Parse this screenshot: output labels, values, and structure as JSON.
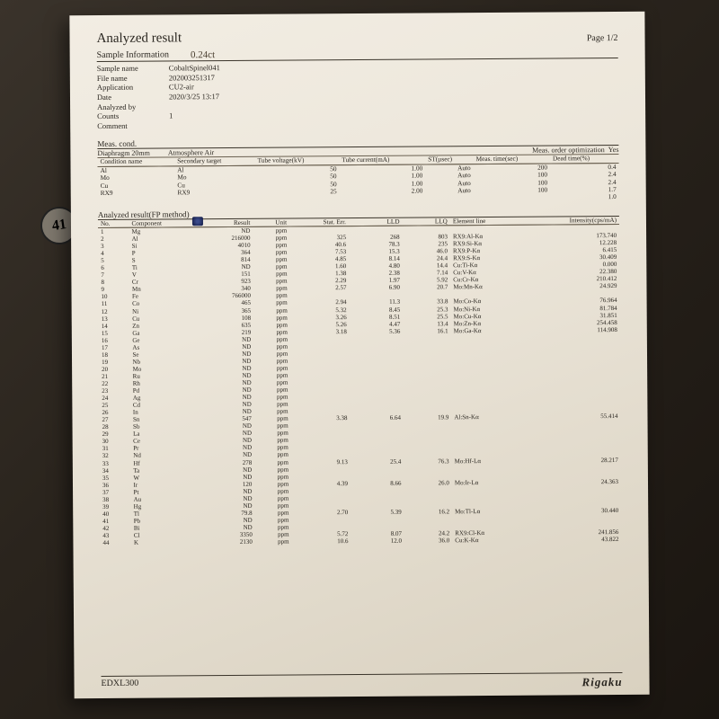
{
  "title": "Analyzed result",
  "page_label": "Page 1/2",
  "handwritten": "0.24ct",
  "stamp": "41",
  "sample_info_label": "Sample Information",
  "info": {
    "sample_name_l": "Sample name",
    "sample_name_v": "CobaltSpinel041",
    "file_name_l": "File name",
    "file_name_v": "202003251317",
    "application_l": "Application",
    "application_v": "CU2-air",
    "date_l": "Date",
    "date_v": "2020/3/25 13:17",
    "analyzed_by_l": "Analyzed by",
    "analyzed_by_v": "",
    "counts_l": "Counts",
    "counts_v": "1",
    "comment_l": "Comment",
    "comment_v": ""
  },
  "meas_cond_label": "Meas. cond.",
  "diaphragm_label": "Diaphragm  20mm",
  "atmosphere_label": "Atmosphere  Air",
  "meas_opt_label": "Meas. order optimization",
  "meas_opt_val": "Yes",
  "cond_headers": [
    "Condition name",
    "Secondary target",
    "Tube voltage(kV)",
    "Tube current(mA)",
    "ST(µsec)",
    "Meas. time(sec)",
    "Dead time(%)"
  ],
  "cond_rows": [
    [
      "Al",
      "Al",
      "50",
      "1.00",
      "Auto",
      "200",
      "0.4"
    ],
    [
      "Mo",
      "Mo",
      "50",
      "1.00",
      "Auto",
      "100",
      "2.4"
    ],
    [
      "Cu",
      "Cu",
      "50",
      "1.00",
      "Auto",
      "100",
      "2.4"
    ],
    [
      "RX9",
      "RX9",
      "25",
      "2.00",
      "Auto",
      "100",
      "1.7"
    ],
    [
      "",
      "",
      "",
      "",
      "",
      "",
      "1.0"
    ]
  ],
  "result_label": "Analyzed result(FP method)",
  "res_headers": [
    "No.",
    "Component",
    "Result",
    "Unit",
    "Stat. Err.",
    "LLD",
    "LLQ",
    "Element line",
    "Intensity(cps/mA)"
  ],
  "res_rows": [
    [
      "1",
      "Mg",
      "ND",
      "ppm",
      "",
      "",
      "",
      "",
      ""
    ],
    [
      "2",
      "Al",
      "216000",
      "ppm",
      "325",
      "268",
      "803",
      "RX9:Al-Kα",
      "173.740"
    ],
    [
      "3",
      "Si",
      "4010",
      "ppm",
      "40.6",
      "78.3",
      "235",
      "RX9:Si-Kα",
      "12.228"
    ],
    [
      "4",
      "P",
      "364",
      "ppm",
      "7.53",
      "15.3",
      "46.0",
      "RX9:P-Kα",
      "6.415"
    ],
    [
      "5",
      "S",
      "814",
      "ppm",
      "4.85",
      "8.14",
      "24.4",
      "RX9:S-Kα",
      "30.409"
    ],
    [
      "6",
      "Ti",
      "ND",
      "ppm",
      "1.60",
      "4.80",
      "14.4",
      "Cu:Ti-Kα",
      "0.000"
    ],
    [
      "7",
      "V",
      "151",
      "ppm",
      "1.38",
      "2.38",
      "7.14",
      "Cu:V-Kα",
      "22.380"
    ],
    [
      "8",
      "Cr",
      "923",
      "ppm",
      "2.29",
      "1.97",
      "5.92",
      "Cu:Cr-Kα",
      "210.412"
    ],
    [
      "9",
      "Mn",
      "340",
      "ppm",
      "2.57",
      "6.90",
      "20.7",
      "Mo:Mn-Kα",
      "24.929"
    ],
    [
      "10",
      "Fe",
      "766000",
      "ppm",
      "",
      "",
      "",
      "",
      ""
    ],
    [
      "11",
      "Co",
      "465",
      "ppm",
      "2.94",
      "11.3",
      "33.8",
      "Mo:Co-Kα",
      "76.964"
    ],
    [
      "12",
      "Ni",
      "365",
      "ppm",
      "5.32",
      "8.45",
      "25.3",
      "Mo:Ni-Kα",
      "81.784"
    ],
    [
      "13",
      "Cu",
      "108",
      "ppm",
      "3.26",
      "8.51",
      "25.5",
      "Mo:Cu-Kα",
      "31.851"
    ],
    [
      "14",
      "Zn",
      "635",
      "ppm",
      "5.26",
      "4.47",
      "13.4",
      "Mo:Zn-Kα",
      "254.458"
    ],
    [
      "15",
      "Ga",
      "219",
      "ppm",
      "3.18",
      "5.36",
      "16.1",
      "Mo:Ga-Kα",
      "114.908"
    ],
    [
      "16",
      "Ge",
      "ND",
      "ppm",
      "",
      "",
      "",
      "",
      ""
    ],
    [
      "17",
      "As",
      "ND",
      "ppm",
      "",
      "",
      "",
      "",
      ""
    ],
    [
      "18",
      "Se",
      "ND",
      "ppm",
      "",
      "",
      "",
      "",
      ""
    ],
    [
      "19",
      "Nb",
      "ND",
      "ppm",
      "",
      "",
      "",
      "",
      ""
    ],
    [
      "20",
      "Mo",
      "ND",
      "ppm",
      "",
      "",
      "",
      "",
      ""
    ],
    [
      "21",
      "Ru",
      "ND",
      "ppm",
      "",
      "",
      "",
      "",
      ""
    ],
    [
      "22",
      "Rh",
      "ND",
      "ppm",
      "",
      "",
      "",
      "",
      ""
    ],
    [
      "23",
      "Pd",
      "ND",
      "ppm",
      "",
      "",
      "",
      "",
      ""
    ],
    [
      "24",
      "Ag",
      "ND",
      "ppm",
      "",
      "",
      "",
      "",
      ""
    ],
    [
      "25",
      "Cd",
      "ND",
      "ppm",
      "",
      "",
      "",
      "",
      ""
    ],
    [
      "26",
      "In",
      "ND",
      "ppm",
      "",
      "",
      "",
      "",
      ""
    ],
    [
      "27",
      "Sn",
      "547",
      "ppm",
      "3.38",
      "6.64",
      "19.9",
      "Al:Sn-Kα",
      "55.414"
    ],
    [
      "28",
      "Sb",
      "ND",
      "ppm",
      "",
      "",
      "",
      "",
      ""
    ],
    [
      "29",
      "La",
      "ND",
      "ppm",
      "",
      "",
      "",
      "",
      ""
    ],
    [
      "30",
      "Ce",
      "ND",
      "ppm",
      "",
      "",
      "",
      "",
      ""
    ],
    [
      "31",
      "Pr",
      "ND",
      "ppm",
      "",
      "",
      "",
      "",
      ""
    ],
    [
      "32",
      "Nd",
      "ND",
      "ppm",
      "",
      "",
      "",
      "",
      ""
    ],
    [
      "33",
      "Hf",
      "278",
      "ppm",
      "9.13",
      "25.4",
      "76.3",
      "Mo:Hf-Lα",
      "28.217"
    ],
    [
      "34",
      "Ta",
      "ND",
      "ppm",
      "",
      "",
      "",
      "",
      ""
    ],
    [
      "35",
      "W",
      "ND",
      "ppm",
      "",
      "",
      "",
      "",
      ""
    ],
    [
      "36",
      "Ir",
      "120",
      "ppm",
      "4.39",
      "8.66",
      "26.0",
      "Mo:Ir-Lα",
      "24.363"
    ],
    [
      "37",
      "Pt",
      "ND",
      "ppm",
      "",
      "",
      "",
      "",
      ""
    ],
    [
      "38",
      "Au",
      "ND",
      "ppm",
      "",
      "",
      "",
      "",
      ""
    ],
    [
      "39",
      "Hg",
      "ND",
      "ppm",
      "",
      "",
      "",
      "",
      ""
    ],
    [
      "40",
      "Tl",
      "79.8",
      "ppm",
      "2.70",
      "5.39",
      "16.2",
      "Mo:Tl-Lα",
      "30.440"
    ],
    [
      "41",
      "Pb",
      "ND",
      "ppm",
      "",
      "",
      "",
      "",
      ""
    ],
    [
      "42",
      "Bi",
      "ND",
      "ppm",
      "",
      "",
      "",
      "",
      ""
    ],
    [
      "43",
      "Cl",
      "3350",
      "ppm",
      "5.72",
      "8.07",
      "24.2",
      "RX9:Cl-Kα",
      "241.856"
    ],
    [
      "44",
      "K",
      "2130",
      "ppm",
      "10.6",
      "12.0",
      "36.0",
      "Cu:K-Kα",
      "43.822"
    ]
  ],
  "footer_left": "EDXL300",
  "footer_right": "Rigaku"
}
